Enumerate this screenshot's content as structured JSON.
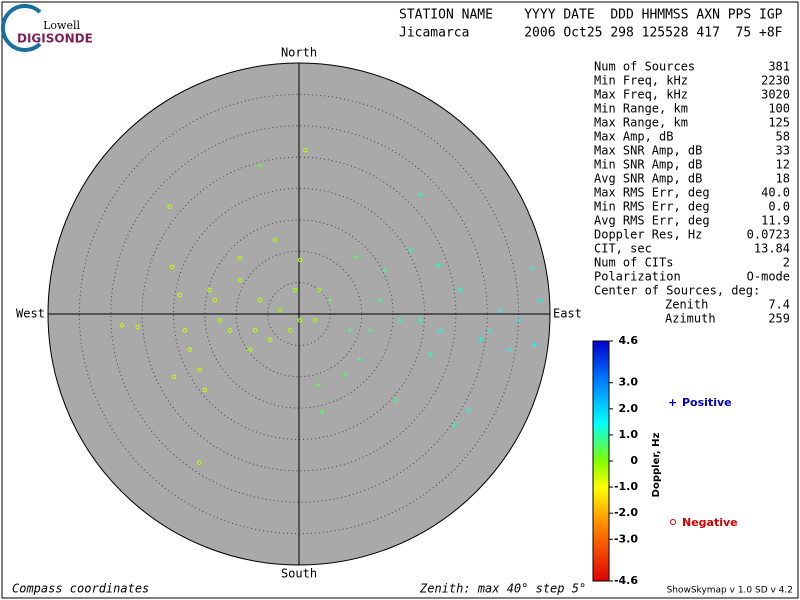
{
  "logo": {
    "line1": "Lowell",
    "line2": "DIGISONDE"
  },
  "header": {
    "columns": "STATION NAME    YYYY DATE  DDD HHMMSS AXN PPS IGP",
    "values": "Jicamarca       2006 Oct25 298 125528 417  75 +8F"
  },
  "compass": {
    "north": "North",
    "south": "South",
    "east": "East",
    "west": "West"
  },
  "zenith": {
    "max": 40,
    "step": 5,
    "caption": "Zenith: max 40°  step 5°"
  },
  "footer": {
    "left": "Compass coordinates",
    "right": "ShowSkymap v 1.0  SD v 4.2"
  },
  "stats": [
    {
      "label": "Num of Sources",
      "value": "381"
    },
    {
      "label": "Min Freq, kHz",
      "value": "2230"
    },
    {
      "label": "Max Freq, kHz",
      "value": "3020"
    },
    {
      "label": "Min Range, km",
      "value": "100"
    },
    {
      "label": "Max Range, km",
      "value": "125"
    },
    {
      "label": "Max Amp, dB",
      "value": "58"
    },
    {
      "label": "Max SNR Amp, dB",
      "value": "33"
    },
    {
      "label": "Min SNR Amp, dB",
      "value": "12"
    },
    {
      "label": "Avg SNR Amp, dB",
      "value": "18"
    },
    {
      "label": "Max RMS Err, deg",
      "value": "40.0"
    },
    {
      "label": "Min RMS Err, deg",
      "value": "0.0"
    },
    {
      "label": "Avg RMS Err, deg",
      "value": "11.9"
    },
    {
      "label": "Doppler Res, Hz",
      "value": "0.0723"
    },
    {
      "label": "CIT, sec",
      "value": "13.84"
    },
    {
      "label": "Num of CITs",
      "value": "2"
    },
    {
      "label": "Polarization",
      "value": "O-mode"
    }
  ],
  "center": {
    "title": "Center of Sources, deg:",
    "rows": [
      {
        "label": "Zenith",
        "value": "7.4"
      },
      {
        "label": "Azimuth",
        "value": "259"
      }
    ]
  },
  "colorbar": {
    "label": "Doppler, Hz",
    "lim": [
      -4.6,
      4.6
    ],
    "ticks": [
      4.6,
      {
        "value": 3,
        "label": "3.0"
      },
      {
        "value": 2,
        "label": "2.0"
      },
      {
        "value": 1,
        "label": "1.0"
      },
      0,
      {
        "value": -1,
        "label": "-1.0"
      },
      {
        "value": -2,
        "label": "-2.0"
      },
      {
        "value": -3,
        "label": "-3.0"
      },
      -4.6
    ]
  },
  "legend": {
    "positive": "Positive",
    "negative": "Negative"
  },
  "sources": {
    "x": [
      -20.6,
      -15.9,
      1.0,
      -28.2,
      -25.7,
      -20.2,
      -9.4,
      -9.4,
      -14.2,
      -18.2,
      -17.4,
      -15.8,
      -19.9,
      -12.6,
      -6.2,
      -3.0,
      -4.6,
      -11.0,
      -15.0,
      -7.8,
      -0.6,
      -1.4,
      0.2,
      2.6,
      3.3,
      -19.0,
      -13.4,
      -3.8,
      0.2,
      -7.0,
      -6.2,
      19.3,
      37.1,
      38.4,
      35.1,
      37.6,
      27.1,
      24.7,
      3.7,
      15.3,
      9.7,
      16.1,
      19.3,
      22.5,
      12.9,
      8.1,
      4.9,
      28.9,
      32.0,
      25.7,
      22.2,
      17.7,
      9.1,
      13.7,
      3.0,
      7.3,
      30.4,
      33.6,
      20.9,
      11.3
    ],
    "y": [
      17.1,
      -23.7,
      26.1,
      -1.8,
      -2.1,
      7.5,
      8.9,
      5.4,
      3.8,
      -2.6,
      -5.7,
      -8.9,
      -10.0,
      -1.0,
      2.2,
      0.6,
      -4.1,
      -2.6,
      -12.1,
      -5.7,
      3.8,
      -2.6,
      -1.0,
      -1.0,
      3.8,
      3.0,
      2.2,
      11.8,
      8.6,
      -2.6,
      23.6,
      19.0,
      7.3,
      2.2,
      -1.0,
      -4.9,
      -15.3,
      -17.7,
      -15.6,
      -13.7,
      -7.3,
      -1.0,
      -1.0,
      -2.6,
      2.2,
      -2.6,
      2.2,
      -4.1,
      0.6,
      3.8,
      7.7,
      10.2,
      9.1,
      7.0,
      -11.3,
      -9.7,
      -2.6,
      -5.7,
      -6.5,
      -2.6
    ],
    "doppler": [
      -0.5,
      -0.5,
      -0.4,
      -0.5,
      -0.5,
      -0.6,
      -0.5,
      -0.4,
      -0.5,
      -0.5,
      -0.5,
      -0.6,
      -0.6,
      -0.5,
      -0.4,
      -0.3,
      -0.4,
      -0.5,
      -0.6,
      -0.4,
      -0.3,
      -0.3,
      -0.3,
      -0.3,
      -0.3,
      -0.6,
      -0.5,
      -0.4,
      -0.3,
      -0.4,
      0.3,
      1.0,
      1.5,
      1.6,
      1.3,
      1.4,
      1.2,
      1.1,
      0.5,
      0.9,
      0.7,
      1.0,
      1.1,
      1.2,
      0.8,
      0.6,
      0.4,
      1.3,
      1.4,
      1.2,
      1.1,
      0.9,
      0.6,
      0.8,
      0.4,
      0.6,
      1.3,
      1.5,
      1.0,
      0.8
    ]
  }
}
